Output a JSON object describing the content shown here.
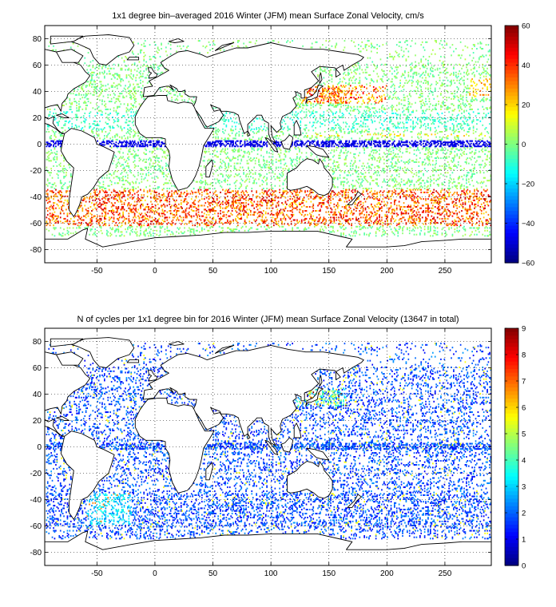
{
  "chart_data": [
    {
      "type": "heatmap",
      "title": "1x1 degree bin–averaged 2016 Winter (JFM) mean Surface Zonal Velocity, cm/s",
      "xlabel": "",
      "ylabel": "",
      "xlim": [
        -95,
        290
      ],
      "ylim": [
        -90,
        90
      ],
      "xticks": [
        "-50",
        "0",
        "50",
        "100",
        "150",
        "200",
        "250"
      ],
      "xtick_values": [
        -50,
        0,
        50,
        100,
        150,
        200,
        250
      ],
      "yticks": [
        "80",
        "60",
        "40",
        "20",
        "0",
        "-20",
        "-40",
        "-60",
        "-80"
      ],
      "ytick_values": [
        80,
        60,
        40,
        20,
        0,
        -20,
        -40,
        -60,
        -80
      ],
      "grid": true,
      "colorbar": {
        "min": -60,
        "max": 60,
        "ticks": [
          "60",
          "40",
          "20",
          "0",
          "−20",
          "−40",
          "−60"
        ],
        "tick_values": [
          60,
          40,
          20,
          0,
          -20,
          -40,
          -60
        ],
        "colormap": "jet"
      }
    },
    {
      "type": "heatmap",
      "title": "N of cycles per 1x1 degree bin for 2016 Winter (JFM) mean Surface Zonal Velocity (13647 in total)",
      "xlabel": "",
      "ylabel": "",
      "xlim": [
        -95,
        290
      ],
      "ylim": [
        -90,
        90
      ],
      "xticks": [
        "-50",
        "0",
        "50",
        "100",
        "150",
        "200",
        "250"
      ],
      "xtick_values": [
        -50,
        0,
        50,
        100,
        150,
        200,
        250
      ],
      "yticks": [
        "80",
        "60",
        "40",
        "20",
        "0",
        "-20",
        "-40",
        "-60",
        "-80"
      ],
      "ytick_values": [
        80,
        60,
        40,
        20,
        0,
        -20,
        -40,
        -60,
        -80
      ],
      "grid": true,
      "colorbar": {
        "min": 0,
        "max": 9,
        "ticks": [
          "9",
          "8",
          "7",
          "6",
          "5",
          "4",
          "3",
          "2",
          "1",
          "0"
        ],
        "tick_values": [
          9,
          8,
          7,
          6,
          5,
          4,
          3,
          2,
          1,
          0
        ],
        "colormap": "jet"
      }
    }
  ]
}
